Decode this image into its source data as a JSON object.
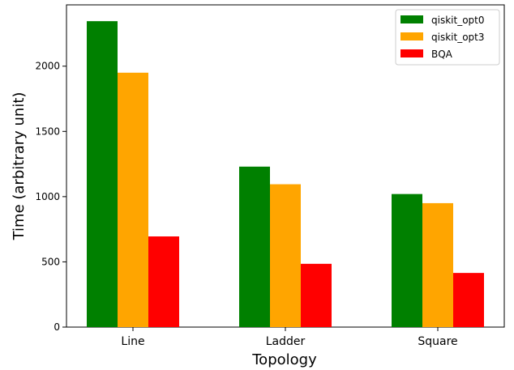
{
  "chart_data": {
    "type": "bar",
    "title": "",
    "xlabel": "Topology",
    "ylabel": "Time (arbitrary unit)",
    "categories": [
      "Line",
      "Ladder",
      "Square"
    ],
    "series": [
      {
        "name": "qiskit_opt0",
        "color": "#008000",
        "values": [
          2345,
          1230,
          1020
        ]
      },
      {
        "name": "qiskit_opt3",
        "color": "#ffa500",
        "values": [
          1950,
          1095,
          950
        ]
      },
      {
        "name": "BQA",
        "color": "#ff0000",
        "values": [
          695,
          485,
          415
        ]
      }
    ],
    "yticks": [
      0,
      500,
      1000,
      1500,
      2000
    ],
    "ylim": [
      0,
      2470
    ],
    "legend": "top-right",
    "grid": false
  }
}
